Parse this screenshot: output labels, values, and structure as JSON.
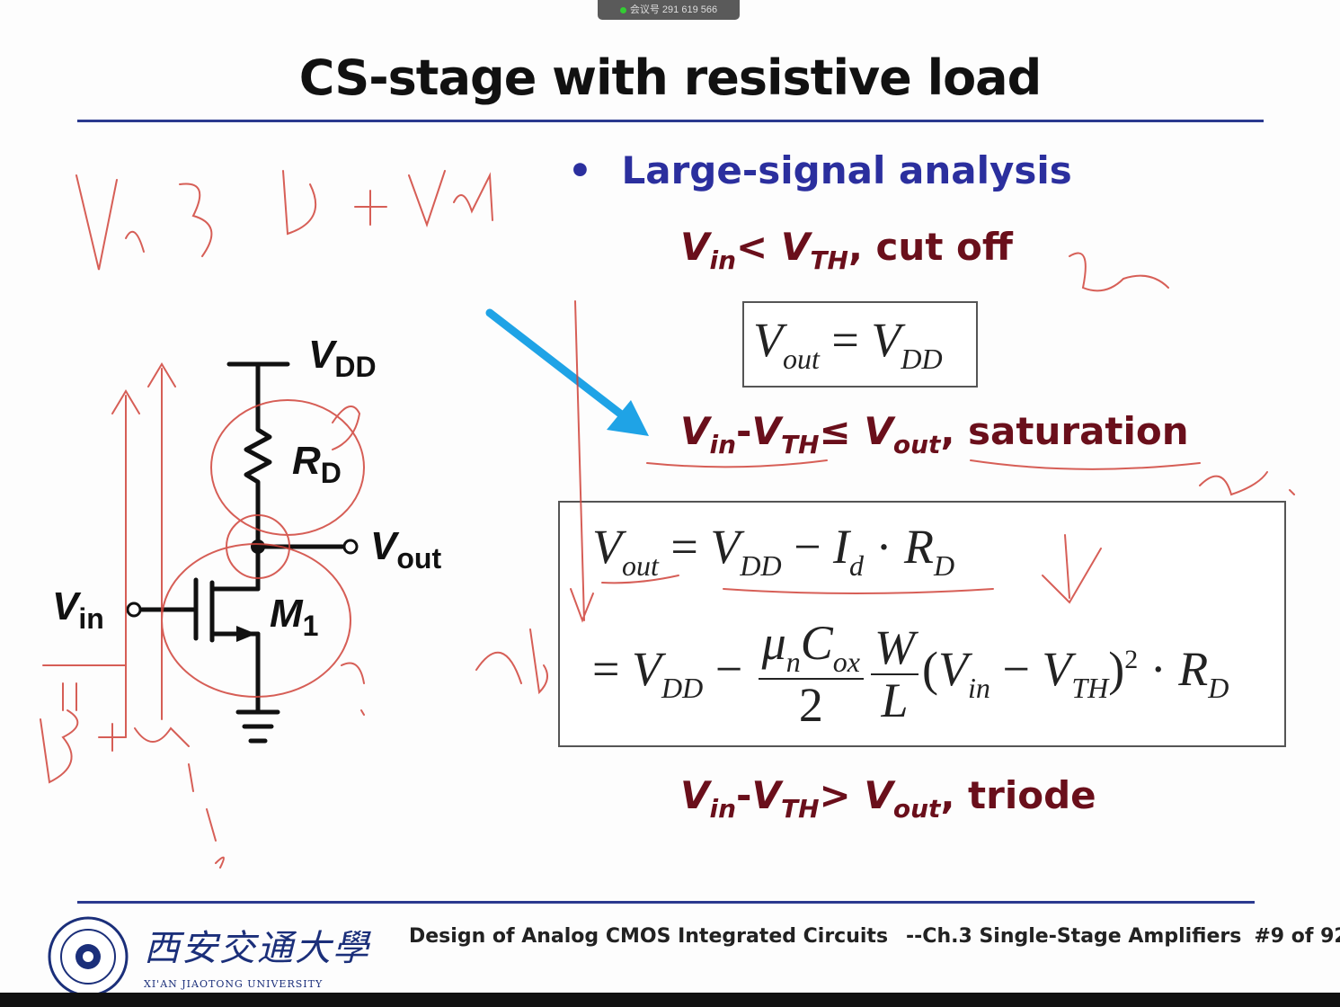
{
  "meeting_badge": {
    "text": "会议号 291 619 566"
  },
  "title": "CS-stage with resistive load",
  "section": {
    "bullet": "•",
    "heading": "Large-signal analysis"
  },
  "conditions": {
    "cutoff": {
      "v": "V",
      "in": "in",
      "lt": "< ",
      "vth": "V",
      "th": "TH",
      "sep": ", ",
      "label": "cut off"
    },
    "saturation": {
      "v": "V",
      "in": "in",
      "minus": "-",
      "vth": "V",
      "th": "TH",
      "op": "≤ ",
      "vout": "V",
      "out": "out",
      "sep": ", ",
      "label": "saturation"
    },
    "triode": {
      "v": "V",
      "in": "in",
      "minus": "-",
      "vth": "V",
      "th": "TH",
      "op": "> ",
      "vout": "V",
      "out": "out",
      "sep": ", ",
      "label": "triode"
    }
  },
  "equations": {
    "cutoff": {
      "lhs": "V",
      "lhs_sub": "out",
      "eq": " = ",
      "rhs": "V",
      "rhs_sub": "DD"
    },
    "sat_line1": {
      "lhs": "V",
      "lhs_sub": "out",
      "eq": " = ",
      "t1": "V",
      "t1_sub": "DD",
      "minus": " − ",
      "t2": "I",
      "t2_sub": "d",
      "dot": " · ",
      "t3": "R",
      "t3_sub": "D"
    },
    "sat_line2": {
      "eq": "= ",
      "t1": "V",
      "t1_sub": "DD",
      "minus": " − ",
      "mu": "μ",
      "mu_sub": "n",
      "c": "C",
      "c_sub": "ox",
      "two": "2",
      "w": "W",
      "l": "L",
      "open": "(",
      "vin": "V",
      "vin_sub": "in",
      "m2": " − ",
      "vth": "V",
      "vth_sub": "TH",
      "close": ")",
      "sq": "2",
      "dot": " · ",
      "r": "R",
      "r_sub": "D"
    }
  },
  "circuit": {
    "vdd": "V",
    "vdd_sub": "DD",
    "rd": "R",
    "rd_sub": "D",
    "vout": "V",
    "vout_sub": "out",
    "vin": "V",
    "vin_sub": "in",
    "m1": "M",
    "m1_sub": "1"
  },
  "footer": {
    "course": "Design of Analog CMOS Integrated Circuits",
    "chapter": "--Ch.3 Single-Stage Amplifiers",
    "page": "#9 of 92",
    "university_cn": "西安交通大學",
    "university_en": "XI'AN JIAOTONG UNIVERSITY"
  },
  "colors": {
    "title_rule": "#2b3a8f",
    "heading": "#2b2f9e",
    "condition": "#6a0f1b",
    "annotation": "#d0433a",
    "arrow": "#1fa3e6"
  }
}
